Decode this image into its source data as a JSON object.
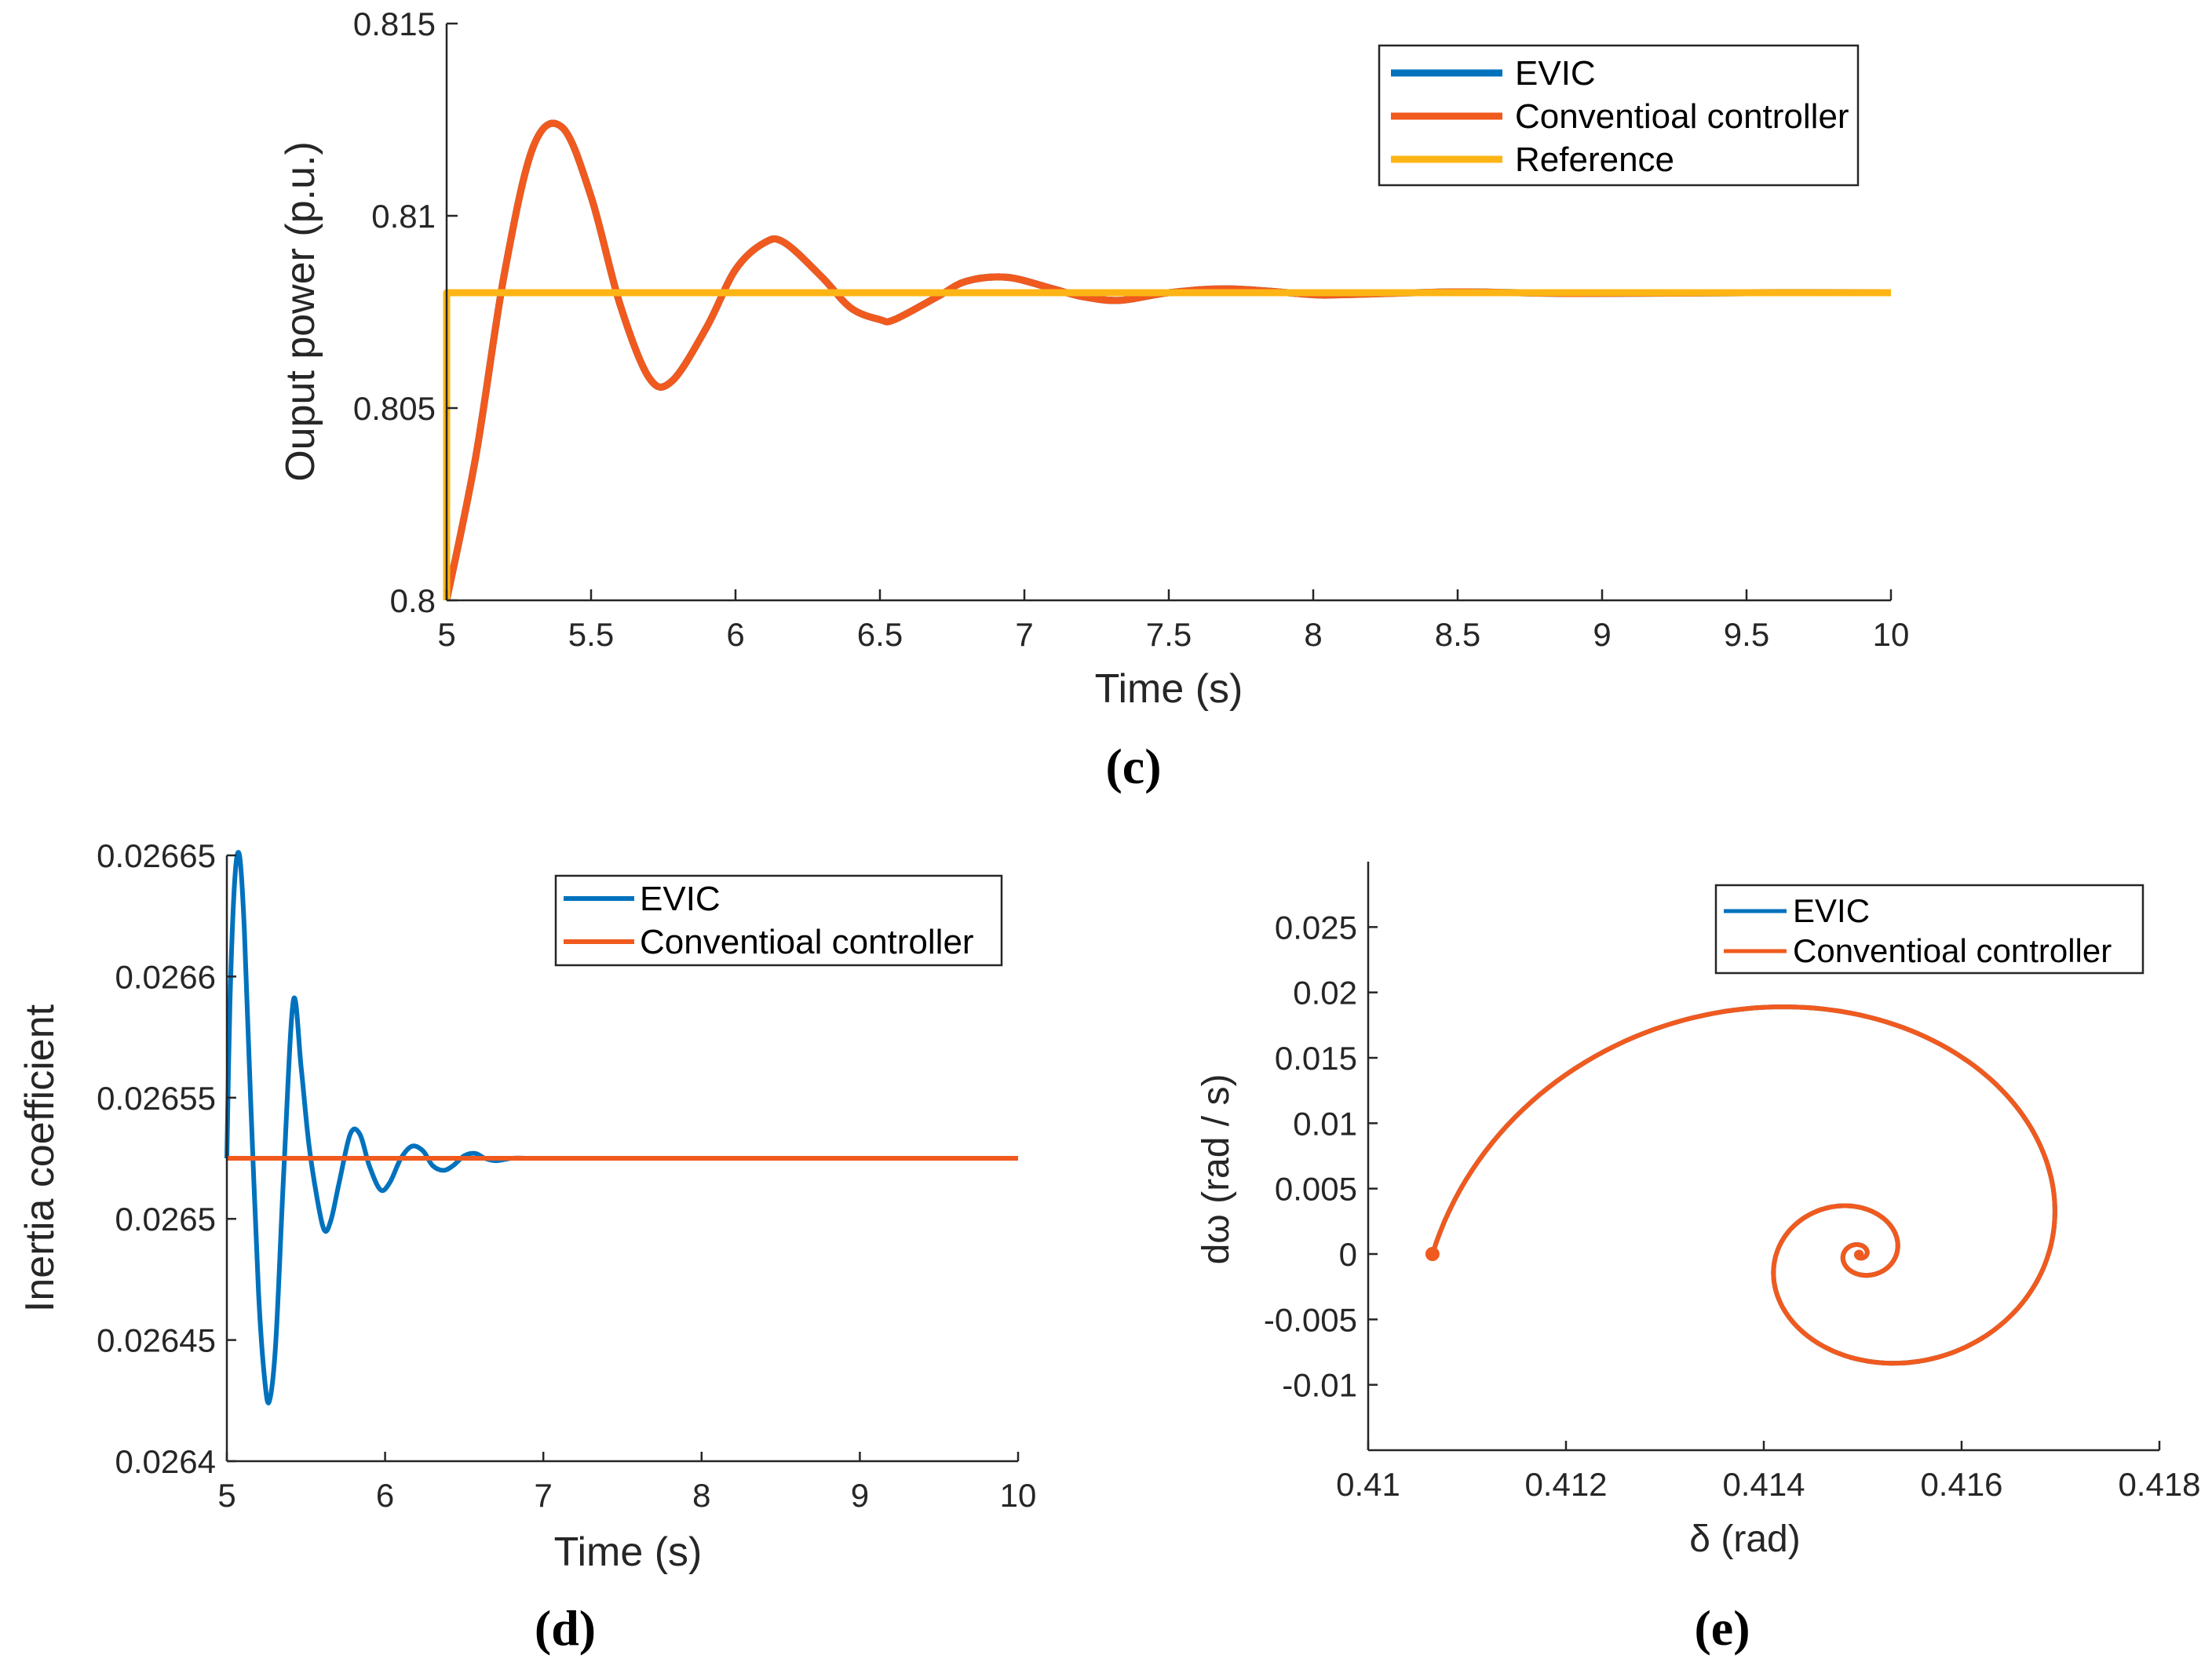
{
  "colors": {
    "evic": "#0072BD",
    "conventional": "#F05A1E",
    "reference": "#FDB515",
    "axis": "#262626"
  },
  "chart_data": [
    {
      "id": "c",
      "type": "line",
      "panel_label": "(c)",
      "xlabel": "Time (s)",
      "ylabel": "Ouput power (p.u.)",
      "xlim": [
        5,
        10
      ],
      "ylim": [
        0.8,
        0.815
      ],
      "xticks": [
        5,
        5.5,
        6,
        6.5,
        7,
        7.5,
        8,
        8.5,
        9,
        9.5,
        10
      ],
      "xtick_labels": [
        "5",
        "5.5",
        "6",
        "6.5",
        "7",
        "7.5",
        "8",
        "8.5",
        "9",
        "9.5",
        "10"
      ],
      "yticks": [
        0.8,
        0.805,
        0.81,
        0.815
      ],
      "ytick_labels": [
        "0.8",
        "0.805",
        "0.81",
        "0.815"
      ],
      "legend": [
        "EVIC",
        "Conventioal controller",
        "Reference"
      ],
      "legend_position": "top-right",
      "series": [
        {
          "name": "EVIC",
          "color_key": "evic",
          "x": [
            5,
            5.1,
            5.2,
            5.3,
            5.4,
            5.5,
            5.6,
            5.7,
            5.78,
            5.9,
            6.0,
            6.1,
            6.17,
            6.3,
            6.4,
            6.5,
            6.55,
            6.7,
            6.8,
            6.94,
            7.1,
            7.2,
            7.33,
            7.5,
            7.71,
            8.0,
            8.1,
            8.5,
            8.9,
            9.5,
            10
          ],
          "values": [
            0.8,
            0.8037,
            0.8085,
            0.8118,
            0.8123,
            0.8105,
            0.8077,
            0.8058,
            0.8057,
            0.8071,
            0.8086,
            0.8093,
            0.8093,
            0.8084,
            0.8076,
            0.8073,
            0.8073,
            0.8079,
            0.8083,
            0.8084,
            0.8081,
            0.8079,
            0.8078,
            0.808,
            0.8081,
            0.80795,
            0.80795,
            0.80802,
            0.80798,
            0.808,
            0.808
          ]
        },
        {
          "name": "Conventioal controller",
          "color_key": "conventional",
          "x": [
            5,
            5.1,
            5.2,
            5.3,
            5.4,
            5.5,
            5.6,
            5.7,
            5.78,
            5.9,
            6.0,
            6.1,
            6.17,
            6.3,
            6.4,
            6.5,
            6.55,
            6.7,
            6.8,
            6.94,
            7.1,
            7.2,
            7.33,
            7.5,
            7.71,
            8.0,
            8.1,
            8.5,
            8.9,
            9.5,
            10
          ],
          "values": [
            0.8,
            0.8037,
            0.8085,
            0.8118,
            0.8123,
            0.8105,
            0.8077,
            0.8058,
            0.8057,
            0.8071,
            0.8086,
            0.8093,
            0.8093,
            0.8084,
            0.8076,
            0.8073,
            0.8073,
            0.8079,
            0.8083,
            0.8084,
            0.8081,
            0.8079,
            0.8078,
            0.808,
            0.8081,
            0.80795,
            0.80795,
            0.80802,
            0.80798,
            0.808,
            0.808
          ]
        },
        {
          "name": "Reference",
          "color_key": "reference",
          "x": [
            5,
            5,
            10
          ],
          "values": [
            0.8,
            0.808,
            0.808
          ]
        }
      ]
    },
    {
      "id": "d",
      "type": "line",
      "panel_label": "(d)",
      "xlabel": "Time (s)",
      "ylabel": "Inertia coefficient",
      "xlim": [
        5,
        10
      ],
      "ylim": [
        0.0264,
        0.02665
      ],
      "xticks": [
        5,
        6,
        7,
        8,
        9,
        10
      ],
      "xtick_labels": [
        "5",
        "6",
        "7",
        "8",
        "9",
        "10"
      ],
      "yticks": [
        0.0264,
        0.02645,
        0.0265,
        0.02655,
        0.0266,
        0.02665
      ],
      "ytick_labels": [
        "0.0264",
        "0.02645",
        "0.0265",
        "0.02655",
        "0.0266",
        "0.02665"
      ],
      "legend": [
        "EVIC",
        "Conventioal controller"
      ],
      "legend_position": "top-right",
      "series": [
        {
          "name": "EVIC",
          "color_key": "evic",
          "x": [
            5,
            5.02,
            5.05,
            5.08,
            5.11,
            5.15,
            5.2,
            5.24,
            5.27,
            5.31,
            5.36,
            5.42,
            5.47,
            5.52,
            5.58,
            5.62,
            5.66,
            5.71,
            5.78,
            5.84,
            5.9,
            5.97,
            6.03,
            6.1,
            6.17,
            6.24,
            6.3,
            6.37,
            6.43,
            6.5,
            6.57,
            6.63,
            6.7,
            6.8,
            6.9,
            7.0
          ],
          "values": [
            0.026525,
            0.02659,
            0.02664,
            0.02665,
            0.02662,
            0.02655,
            0.02647,
            0.026433,
            0.026425,
            0.02645,
            0.02652,
            0.02659,
            0.026562,
            0.02653,
            0.026505,
            0.026495,
            0.0265,
            0.026515,
            0.026535,
            0.026535,
            0.026522,
            0.026512,
            0.026515,
            0.026525,
            0.02653,
            0.026528,
            0.026522,
            0.02652,
            0.026522,
            0.026526,
            0.026527,
            0.026525,
            0.026524,
            0.026525,
            0.026525,
            0.026525
          ]
        },
        {
          "name": "Conventioal controller",
          "color_key": "conventional",
          "x": [
            5,
            10
          ],
          "values": [
            0.026525,
            0.026525
          ]
        }
      ]
    },
    {
      "id": "e",
      "type": "line",
      "panel_label": "(e)",
      "xlabel": "δ (rad)",
      "ylabel": "dω (rad / s)",
      "xlim": [
        0.41,
        0.418
      ],
      "ylim": [
        -0.015,
        0.03
      ],
      "xticks": [
        0.41,
        0.412,
        0.414,
        0.416,
        0.418
      ],
      "xtick_labels": [
        "0.41",
        "0.412",
        "0.414",
        "0.416",
        "0.418"
      ],
      "yticks": [
        -0.01,
        -0.005,
        0,
        0.005,
        0.01,
        0.015,
        0.02,
        0.025
      ],
      "ytick_labels": [
        "-0.01",
        "-0.005",
        "0",
        "0.005",
        "0.01",
        "0.015",
        "0.02",
        "0.025"
      ],
      "legend": [
        "EVIC",
        "Conventioal controller"
      ],
      "legend_position": "top-right",
      "spiral": {
        "start": [
          0.41065,
          0.0
        ],
        "center": [
          0.41497,
          0.0
        ],
        "turns": 4.5
      },
      "series": [
        {
          "name": "EVIC",
          "color_key": "evic"
        },
        {
          "name": "Conventioal controller",
          "color_key": "conventional"
        }
      ]
    }
  ]
}
